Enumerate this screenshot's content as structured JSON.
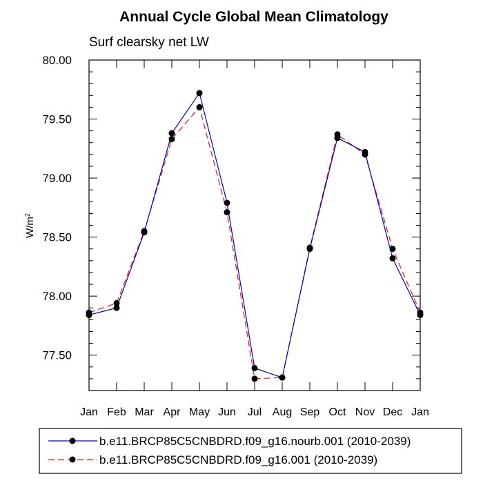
{
  "chart_data": {
    "type": "line",
    "title": "Annual Cycle Global Mean Climatology",
    "subtitle": "Surf clearsky net LW",
    "ylabel_base": "W/m",
    "ylabel_sup": "2",
    "categories": [
      "Jan",
      "Feb",
      "Mar",
      "Apr",
      "May",
      "Jun",
      "Jul",
      "Aug",
      "Sep",
      "Oct",
      "Nov",
      "Dec",
      "Jan"
    ],
    "ylim": [
      77.2,
      80.0
    ],
    "yticks": [
      "80.00",
      "79.50",
      "79.00",
      "78.50",
      "78.00",
      "77.50"
    ],
    "grid": false,
    "legend_position": "bottom",
    "series": [
      {
        "name": "b.e11.BRCP85C5CNBDRD.f09_g16.nourb.001 (2010-2039)",
        "color": "#0000cc",
        "dash": "solid",
        "marker": "circle",
        "values": [
          77.84,
          77.9,
          78.54,
          79.38,
          79.72,
          78.79,
          77.39,
          77.31,
          78.4,
          79.34,
          79.22,
          78.32,
          77.84
        ]
      },
      {
        "name": "b.e11.BRCP85C5CNBDRD.f09_g16.001 (2010-2039)",
        "color": "#ee1111",
        "dash": "dashed",
        "marker": "circle",
        "values": [
          77.86,
          77.94,
          78.55,
          79.33,
          79.6,
          78.71,
          77.3,
          77.31,
          78.41,
          79.37,
          79.2,
          78.4,
          77.86
        ]
      }
    ]
  }
}
